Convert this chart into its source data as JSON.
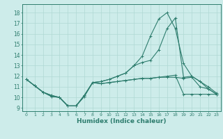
{
  "xlabel": "Humidex (Indice chaleur)",
  "ylabel": "",
  "background_color": "#cdecea",
  "grid_color": "#b0d8d4",
  "line_color": "#2e7d6e",
  "xlim": [
    -0.5,
    23.5
  ],
  "ylim": [
    8.7,
    18.8
  ],
  "yticks": [
    9,
    10,
    11,
    12,
    13,
    14,
    15,
    16,
    17,
    18
  ],
  "xticks": [
    0,
    1,
    2,
    3,
    4,
    5,
    6,
    7,
    8,
    9,
    10,
    11,
    12,
    13,
    14,
    15,
    16,
    17,
    18,
    19,
    20,
    21,
    22,
    23
  ],
  "series": [
    [
      11.7,
      11.1,
      10.5,
      10.1,
      10.0,
      9.2,
      9.2,
      10.1,
      11.4,
      11.5,
      11.7,
      12.0,
      12.3,
      13.0,
      13.3,
      13.5,
      14.5,
      16.5,
      17.5,
      11.9,
      12.0,
      11.5,
      11.0,
      10.4
    ],
    [
      11.7,
      11.1,
      10.5,
      10.1,
      10.0,
      9.2,
      9.2,
      10.1,
      11.4,
      11.5,
      11.7,
      12.0,
      12.3,
      13.0,
      13.9,
      15.8,
      17.4,
      18.0,
      16.5,
      13.2,
      12.0,
      11.5,
      10.8,
      10.3
    ],
    [
      11.7,
      11.1,
      10.5,
      10.2,
      10.0,
      9.2,
      9.2,
      10.2,
      11.4,
      11.3,
      11.4,
      11.5,
      11.6,
      11.7,
      11.8,
      11.8,
      11.9,
      12.0,
      12.1,
      10.3,
      10.3,
      10.3,
      10.3,
      10.3
    ],
    [
      11.7,
      11.1,
      10.5,
      10.2,
      10.0,
      9.2,
      9.2,
      10.2,
      11.4,
      11.3,
      11.4,
      11.5,
      11.6,
      11.7,
      11.8,
      11.8,
      11.9,
      11.9,
      11.9,
      11.8,
      11.9,
      11.0,
      10.8,
      10.3
    ]
  ]
}
